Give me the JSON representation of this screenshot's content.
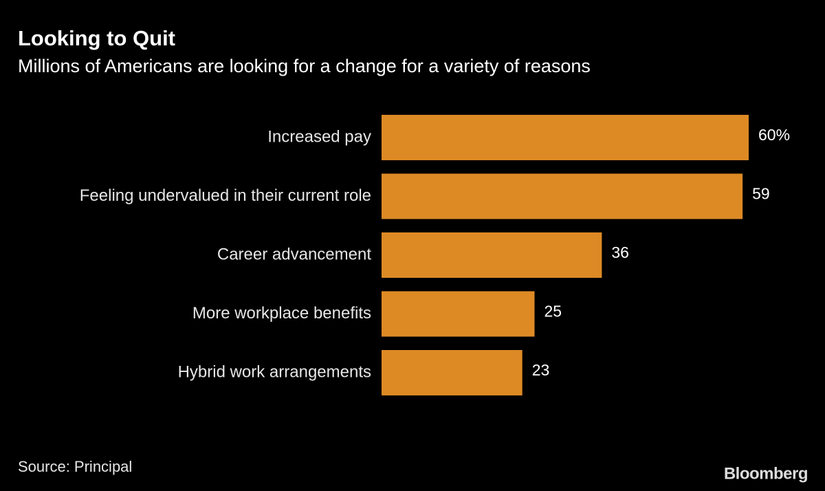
{
  "chart_data": {
    "type": "bar",
    "orientation": "horizontal",
    "title": "Looking to Quit",
    "subtitle": "Millions of Americans are looking for a change for a variety of reasons",
    "categories": [
      "Increased pay",
      "Feeling undervalued in their current role",
      "Career advancement",
      "More workplace benefits",
      "Hybrid work arrangements"
    ],
    "values": [
      60,
      59,
      36,
      25,
      23
    ],
    "value_labels": [
      "60%",
      "59",
      "36",
      "25",
      "23"
    ],
    "color": "#dd8a25",
    "source": "Source: Principal",
    "logo": "Bloomberg"
  }
}
